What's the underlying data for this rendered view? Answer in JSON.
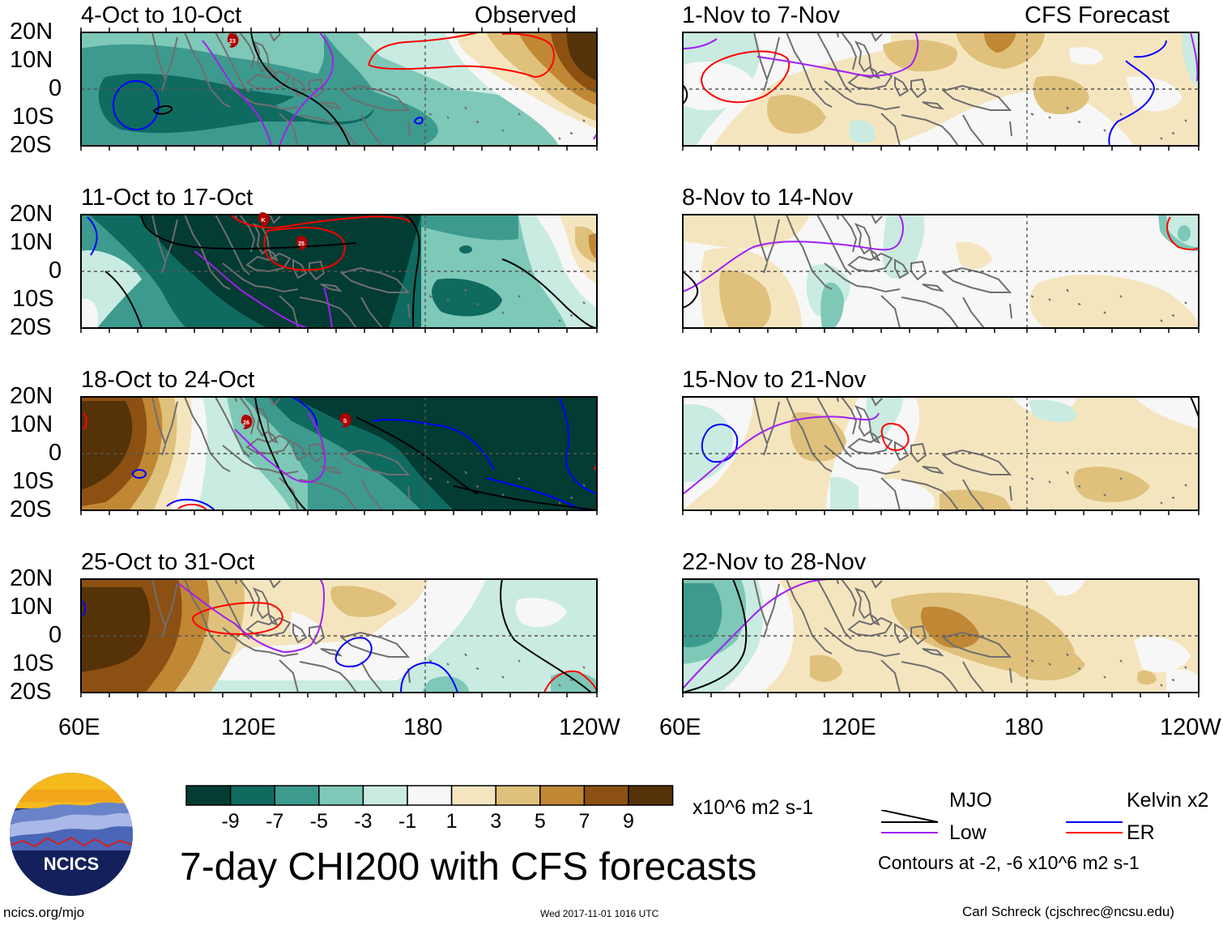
{
  "panels_left": [
    {
      "title": "4-Oct to 10-Oct",
      "tag": "Observed"
    },
    {
      "title": "11-Oct to 17-Oct",
      "tag": ""
    },
    {
      "title": "18-Oct to 24-Oct",
      "tag": ""
    },
    {
      "title": "25-Oct to 31-Oct",
      "tag": ""
    }
  ],
  "panels_right": [
    {
      "title": "1-Nov to 7-Nov",
      "tag": "CFS Forecast"
    },
    {
      "title": "8-Nov to 14-Nov",
      "tag": ""
    },
    {
      "title": "15-Nov to 21-Nov",
      "tag": ""
    },
    {
      "title": "22-Nov to 28-Nov",
      "tag": ""
    }
  ],
  "lat_labels": [
    "20N",
    "10N",
    "0",
    "10S",
    "20S"
  ],
  "lon_labels": [
    "60E",
    "120E",
    "180",
    "120W"
  ],
  "storm_markers": [
    {
      "panel": 0,
      "label": "23"
    },
    {
      "panel": 1,
      "label": "K"
    },
    {
      "panel": 1,
      "label": "25"
    },
    {
      "panel": 2,
      "label": "26"
    },
    {
      "panel": 2,
      "label": "S"
    }
  ],
  "colorbar": {
    "ticks": [
      "-9",
      "-7",
      "-5",
      "-3",
      "-1",
      "1",
      "3",
      "5",
      "7",
      "9"
    ],
    "colors": [
      "#023c32",
      "#0f6a60",
      "#3d9a8e",
      "#7ec8b8",
      "#c9ebe2",
      "#f7f7f7",
      "#f5e5bf",
      "#dfc17c",
      "#c08735",
      "#8c5012",
      "#553208"
    ],
    "units": "x10^6 m2 s-1"
  },
  "legend": {
    "items": [
      {
        "label": "MJO",
        "color": "#000000"
      },
      {
        "label": "Kelvin x2",
        "color": "#0000ff"
      },
      {
        "label": "Low",
        "color": "#a020f0"
      },
      {
        "label": "ER",
        "color": "#ff0000"
      }
    ],
    "contours_note": "Contours at -2, -6 x10^6 m2 s-1"
  },
  "logo": {
    "text": "NCICS"
  },
  "footer": {
    "url": "ncics.org/mjo",
    "timestamp": "Wed 2017-11-01 1016 UTC",
    "credit": "Carl Schreck (cjschrec@ncsu.edu)"
  },
  "main_title": "7-day CHI200 with CFS forecasts"
}
